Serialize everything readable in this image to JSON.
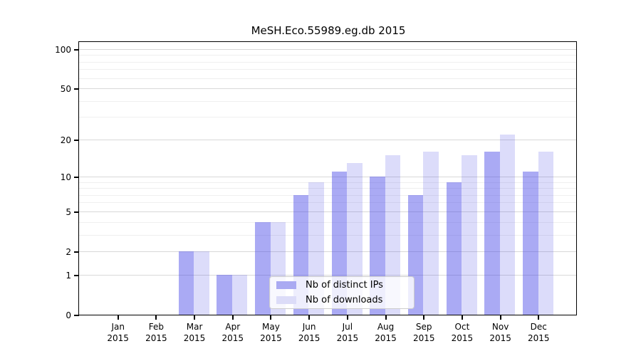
{
  "chart_data": {
    "type": "bar",
    "title": "MeSH.Eco.55989.eg.db 2015",
    "year": "2015",
    "categories": [
      "Jan 2015",
      "Feb 2015",
      "Mar 2015",
      "Apr 2015",
      "May 2015",
      "Jun 2015",
      "Jul 2015",
      "Aug 2015",
      "Sep 2015",
      "Oct 2015",
      "Nov 2015",
      "Dec 2015"
    ],
    "series": [
      {
        "name": "Nb of distinct IPs",
        "legend_color": "#aaaaf2",
        "fill": "rgba(70,70,230,0.46)",
        "values": [
          0,
          0,
          2,
          1,
          4,
          7,
          11,
          10,
          7,
          9,
          16,
          11
        ]
      },
      {
        "name": "Nb of downloads",
        "legend_color": "#dcdcf8",
        "fill": "rgba(70,70,230,0.19)",
        "values": [
          0,
          0,
          2,
          1,
          4,
          9,
          13,
          15,
          16,
          15,
          22,
          16
        ]
      }
    ],
    "xlabel": "",
    "ylabel": "",
    "yscale": "log1p",
    "ylim": [
      0,
      113.4
    ],
    "yticks": [
      0,
      1,
      2,
      5,
      10,
      20,
      50,
      100
    ],
    "minor_yticks": [
      3,
      4,
      6,
      7,
      8,
      9,
      30,
      40,
      60,
      70,
      80,
      90
    ],
    "grid": true,
    "major_grid_color": "#d8d8d8",
    "minor_grid_color": "#efefef",
    "axis_color": "#000000",
    "legend_position": "lower center inside"
  }
}
